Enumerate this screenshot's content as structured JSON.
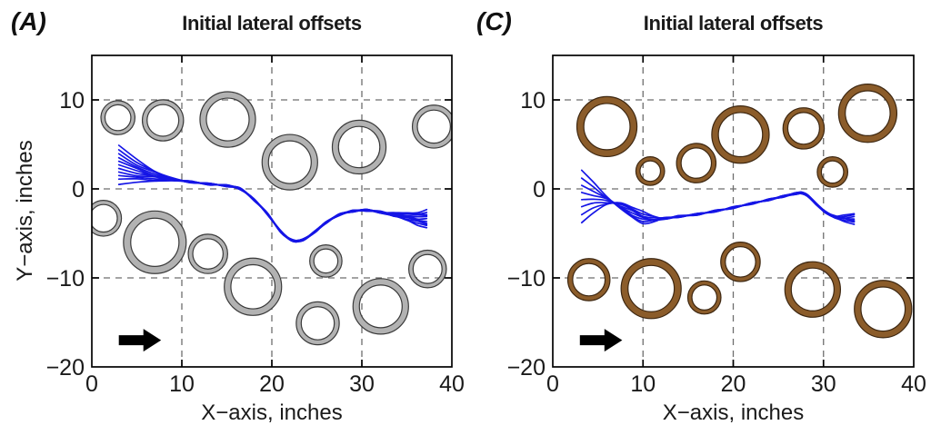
{
  "figure": {
    "background": "#ffffff",
    "text_color": "#1a1a1a"
  },
  "chart_data": [
    {
      "type": "line",
      "panel_label": "(A)",
      "title": "Initial lateral offsets",
      "xlabel": "X−axis, inches",
      "ylabel": "Y−axis, inches",
      "xlim": [
        0,
        40
      ],
      "ylim": [
        -20,
        15
      ],
      "xticks": [
        {
          "v": 0,
          "label": "0"
        },
        {
          "v": 10,
          "label": "10"
        },
        {
          "v": 20,
          "label": "20"
        },
        {
          "v": 30,
          "label": "30"
        },
        {
          "v": 40,
          "label": "40"
        }
      ],
      "yticks": [
        {
          "v": 10,
          "label": "10"
        },
        {
          "v": 0,
          "label": "0"
        },
        {
          "v": -10,
          "label": "−10"
        },
        {
          "v": -20,
          "label": "−20"
        }
      ],
      "grid_x": [
        10,
        20,
        30
      ],
      "grid_y": [
        10,
        0,
        -10
      ],
      "grid_on": true,
      "obstacle_color": "#b2b2b2",
      "obstacle_edge_color": "#3a3a3a",
      "obstacles": [
        {
          "x": 2.9,
          "y": 8.0,
          "r": 1.9
        },
        {
          "x": 7.9,
          "y": 7.7,
          "r": 2.3
        },
        {
          "x": 15.1,
          "y": 7.8,
          "r": 3.1
        },
        {
          "x": 22.0,
          "y": 3.0,
          "r": 3.1
        },
        {
          "x": 29.7,
          "y": 4.7,
          "r": 3.0
        },
        {
          "x": 38.0,
          "y": 7.0,
          "r": 2.4
        },
        {
          "x": 1.3,
          "y": -3.3,
          "r": 2.0
        },
        {
          "x": 7.0,
          "y": -6.0,
          "r": 3.5
        },
        {
          "x": 12.9,
          "y": -7.3,
          "r": 2.2
        },
        {
          "x": 17.9,
          "y": -11.0,
          "r": 3.2
        },
        {
          "x": 26.0,
          "y": -8.1,
          "r": 1.8
        },
        {
          "x": 25.1,
          "y": -15.1,
          "r": 2.4
        },
        {
          "x": 32.1,
          "y": -13.2,
          "r": 3.1
        },
        {
          "x": 37.3,
          "y": -9.0,
          "r": 2.1
        }
      ],
      "trajectory_color": "#1515e6",
      "trajectories": {
        "n_lines": 11,
        "start_x": 3.0,
        "converge_x": 11.5,
        "overshoot": 0.18,
        "decay_power": 1.3,
        "start_offsets": [
          4.0,
          3.5,
          3.05,
          2.6,
          2.2,
          1.8,
          1.4,
          1.0,
          0.6,
          0.2,
          -0.4
        ],
        "end_spread": 1.0,
        "end_start_x": 31,
        "baseline": [
          [
            3.0,
            0.9
          ],
          [
            5.0,
            0.95
          ],
          [
            7.0,
            1.0
          ],
          [
            9.0,
            0.95
          ],
          [
            11.0,
            0.8
          ],
          [
            13.0,
            0.55
          ],
          [
            15.0,
            0.35
          ],
          [
            16.5,
            0.0
          ],
          [
            18.0,
            -1.2
          ],
          [
            19.5,
            -2.8
          ],
          [
            21.0,
            -4.8
          ],
          [
            22.3,
            -5.8
          ],
          [
            23.5,
            -5.7
          ],
          [
            24.8,
            -4.8
          ],
          [
            26.0,
            -3.8
          ],
          [
            27.5,
            -2.9
          ],
          [
            29.0,
            -2.5
          ],
          [
            30.5,
            -2.4
          ],
          [
            32.0,
            -2.6
          ],
          [
            33.5,
            -2.9
          ],
          [
            35.0,
            -3.1
          ],
          [
            36.2,
            -3.3
          ],
          [
            37.2,
            -3.4
          ]
        ]
      },
      "arrow": {
        "x_tail": 3.0,
        "x_tip": 7.7,
        "y": -17.0,
        "direction": "right",
        "color": "#000000"
      }
    },
    {
      "type": "line",
      "panel_label": "(C)",
      "title": "Initial lateral offsets",
      "xlabel": "X−axis, inches",
      "ylabel": "",
      "xlim": [
        0,
        40
      ],
      "ylim": [
        -20,
        15
      ],
      "xticks": [
        {
          "v": 0,
          "label": "0"
        },
        {
          "v": 10,
          "label": "10"
        },
        {
          "v": 20,
          "label": "20"
        },
        {
          "v": 30,
          "label": "30"
        },
        {
          "v": 40,
          "label": "40"
        }
      ],
      "yticks": [
        {
          "v": 10,
          "label": "10"
        },
        {
          "v": 0,
          "label": "0"
        },
        {
          "v": -10,
          "label": "−10"
        },
        {
          "v": -20,
          "label": "−20"
        }
      ],
      "grid_x": [
        10,
        20,
        30
      ],
      "grid_y": [
        10,
        0,
        -10
      ],
      "grid_on": true,
      "obstacle_color": "#8b5c2a",
      "obstacle_edge_color": "#3d2711",
      "obstacles": [
        {
          "x": 6.0,
          "y": 7.0,
          "r": 3.35
        },
        {
          "x": 10.8,
          "y": 2.0,
          "r": 1.6
        },
        {
          "x": 15.9,
          "y": 2.9,
          "r": 2.2
        },
        {
          "x": 20.8,
          "y": 6.1,
          "r": 3.2
        },
        {
          "x": 27.8,
          "y": 6.8,
          "r": 2.3
        },
        {
          "x": 34.9,
          "y": 8.5,
          "r": 3.25
        },
        {
          "x": 31.0,
          "y": 1.9,
          "r": 1.7
        },
        {
          "x": 4.0,
          "y": -10.2,
          "r": 2.35
        },
        {
          "x": 10.9,
          "y": -11.2,
          "r": 3.35
        },
        {
          "x": 16.8,
          "y": -12.2,
          "r": 1.85
        },
        {
          "x": 20.8,
          "y": -8.2,
          "r": 2.2
        },
        {
          "x": 28.8,
          "y": -11.3,
          "r": 3.1
        },
        {
          "x": 36.6,
          "y": -13.5,
          "r": 3.2
        }
      ],
      "trajectory_color": "#1515e6",
      "trajectories": {
        "n_lines": 8,
        "start_x": 3.2,
        "converge_x": 12.0,
        "overshoot": 0.45,
        "decay_power": 1.6,
        "start_offsets": [
          3.0,
          2.1,
          1.3,
          0.5,
          -0.3,
          -1.1,
          -2.0,
          -2.9
        ],
        "end_spread": 0.6,
        "end_start_x": 30,
        "baseline": [
          [
            3.2,
            -0.9
          ],
          [
            4.5,
            -1.0
          ],
          [
            6.0,
            -1.3
          ],
          [
            7.5,
            -1.9
          ],
          [
            8.8,
            -2.6
          ],
          [
            10.0,
            -3.2
          ],
          [
            11.2,
            -3.4
          ],
          [
            12.5,
            -3.3
          ],
          [
            14.0,
            -3.1
          ],
          [
            16.0,
            -2.85
          ],
          [
            18.0,
            -2.5
          ],
          [
            20.0,
            -2.1
          ],
          [
            22.0,
            -1.65
          ],
          [
            24.0,
            -1.2
          ],
          [
            25.5,
            -0.85
          ],
          [
            26.8,
            -0.55
          ],
          [
            27.6,
            -0.45
          ],
          [
            28.3,
            -0.8
          ],
          [
            29.2,
            -1.7
          ],
          [
            30.2,
            -2.6
          ],
          [
            31.2,
            -3.1
          ],
          [
            32.3,
            -3.3
          ],
          [
            33.4,
            -3.4
          ]
        ]
      },
      "arrow": {
        "x_tail": 3.0,
        "x_tip": 7.7,
        "y": -17.0,
        "direction": "right",
        "color": "#000000"
      }
    }
  ]
}
